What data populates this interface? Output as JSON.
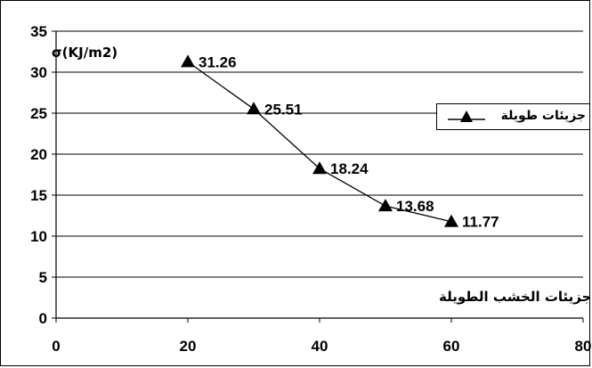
{
  "chart_data": {
    "type": "line",
    "x": [
      20,
      30,
      40,
      50,
      60
    ],
    "series": [
      {
        "name": "جزيئات طويلة",
        "values": [
          31.26,
          25.51,
          18.24,
          13.68,
          11.77
        ]
      }
    ],
    "data_labels": [
      "31.26",
      "25.51",
      "18.24",
      "13.68",
      "11.77"
    ],
    "y_ticks": [
      "0",
      "5",
      "10",
      "15",
      "20",
      "25",
      "30",
      "35"
    ],
    "x_ticks": [
      "0",
      "20",
      "40",
      "60",
      "80"
    ],
    "ylabel": "σ(KJ/m2)",
    "xlabel": "نسبة جزيئات الخشب الطويلة",
    "xlim": [
      0,
      80
    ],
    "ylim": [
      0,
      35
    ],
    "grid": "horizontal",
    "legend_position": "right",
    "marker": "triangle",
    "line_color": "#000000"
  }
}
